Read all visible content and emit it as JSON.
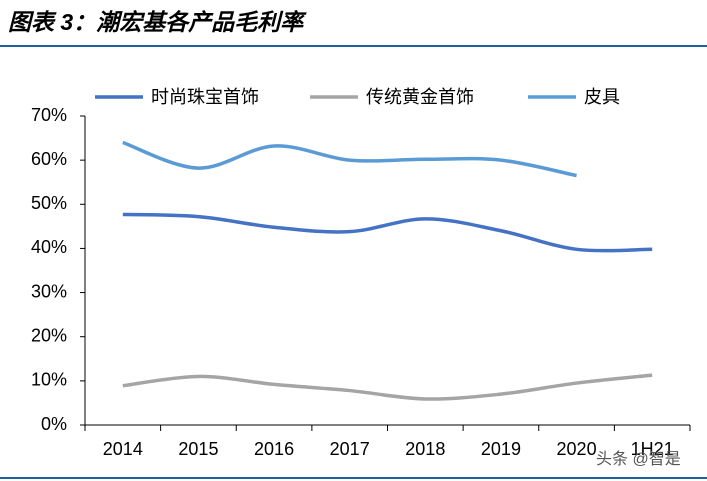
{
  "chart_data": {
    "type": "line",
    "title": "图表 3：潮宏基各产品毛利率",
    "categories": [
      "2014",
      "2015",
      "2016",
      "2017",
      "2018",
      "2019",
      "2020",
      "1H21"
    ],
    "series": [
      {
        "name": "时尚珠宝首饰",
        "color": "#4472c4",
        "values": [
          47.7,
          47.2,
          44.8,
          43.8,
          46.7,
          44,
          39.8,
          39.8
        ]
      },
      {
        "name": "传统黄金首饰",
        "color": "#a5a5a5",
        "values": [
          8.9,
          11,
          9.2,
          7.8,
          5.9,
          7,
          9.5,
          11.3
        ]
      },
      {
        "name": "皮具",
        "color": "#5b9bd5",
        "values": [
          64,
          58.2,
          63.2,
          60,
          60.2,
          60,
          56.5,
          null
        ]
      }
    ],
    "ylim": [
      0,
      70
    ],
    "yticks": [
      {
        "value": 0,
        "label": "0%"
      },
      {
        "value": 10,
        "label": "10%"
      },
      {
        "value": 20,
        "label": "20%"
      },
      {
        "value": 30,
        "label": "30%"
      },
      {
        "value": 40,
        "label": "40%"
      },
      {
        "value": 50,
        "label": "50%"
      },
      {
        "value": 60,
        "label": "60%"
      },
      {
        "value": 70,
        "label": "70%"
      }
    ],
    "smooth": true,
    "watermark": "头条 @智是"
  }
}
